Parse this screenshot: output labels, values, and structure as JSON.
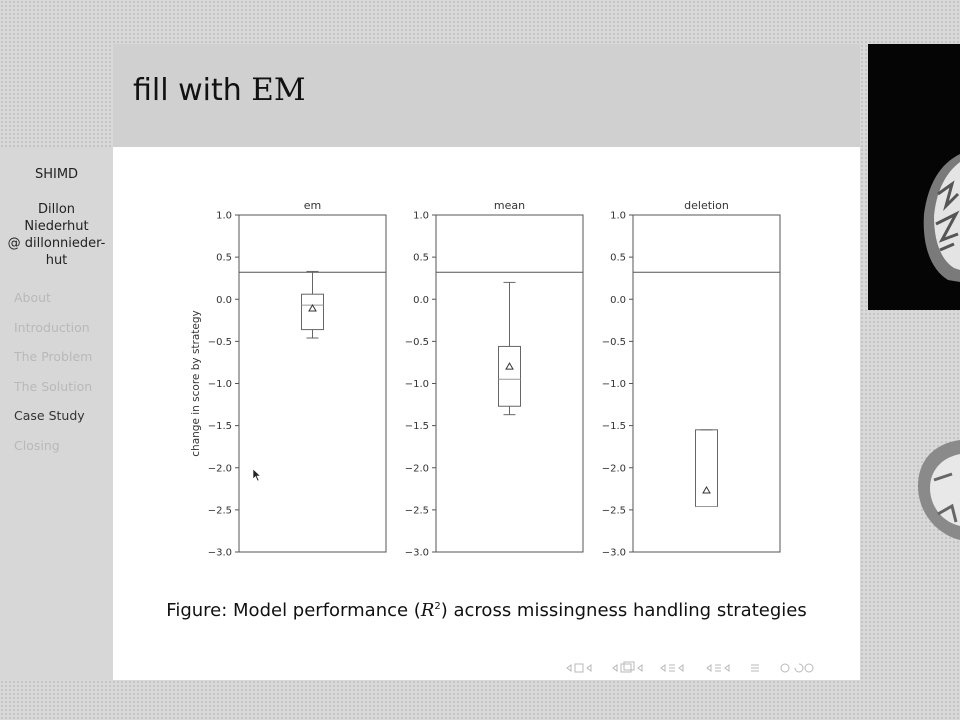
{
  "slide": {
    "title_prefix": "fill with",
    "title_em": "EM"
  },
  "sidebar": {
    "short_title": "SHIMD",
    "author_line1": "Dillon",
    "author_line2": "Niederhut",
    "author_line3": "@ dillonnieder-",
    "author_line4": "hut",
    "items": [
      {
        "label": "About",
        "current": false
      },
      {
        "label": "Introduction",
        "current": false
      },
      {
        "label": "The Problem",
        "current": false
      },
      {
        "label": "The Solution",
        "current": false
      },
      {
        "label": "Case Study",
        "current": true
      },
      {
        "label": "Closing",
        "current": false
      }
    ]
  },
  "caption": {
    "prefix": "Figure: Model performance (",
    "symbol": "R",
    "exponent": "2",
    "suffix": ") across missingness handling strategies"
  },
  "chart_data": {
    "type": "box",
    "ylabel": "change in score by strategy",
    "ylim": [
      -3.0,
      1.0
    ],
    "yticks": [
      1.0,
      0.5,
      0.0,
      -0.5,
      -1.0,
      -1.5,
      -2.0,
      -2.5,
      -3.0
    ],
    "ytick_labels": [
      "1.0",
      "0.5",
      "0.0",
      "−0.5",
      "−1.0",
      "−1.5",
      "−2.0",
      "−2.5",
      "−3.0"
    ],
    "reference_line": 0.32,
    "panels": [
      {
        "title": "em",
        "q1": -0.36,
        "median": -0.07,
        "q3": 0.06,
        "whisker_low": -0.46,
        "whisker_high": 0.33,
        "mean": -0.11
      },
      {
        "title": "mean",
        "q1": -1.27,
        "median": -0.95,
        "q3": -0.56,
        "whisker_low": -1.37,
        "whisker_high": 0.2,
        "mean": -0.8
      },
      {
        "title": "deletion",
        "q1": -2.46,
        "median": -2.46,
        "q3": -1.55,
        "whisker_low": -2.46,
        "whisker_high": -1.55,
        "mean": -2.27
      }
    ]
  },
  "colors": {
    "box": "#666666",
    "frame": "#555555",
    "tick_text": "#333333"
  },
  "icons": [
    "cursor-arrow-icon",
    "beamer-navigation-icons",
    "presenter-webcam"
  ]
}
